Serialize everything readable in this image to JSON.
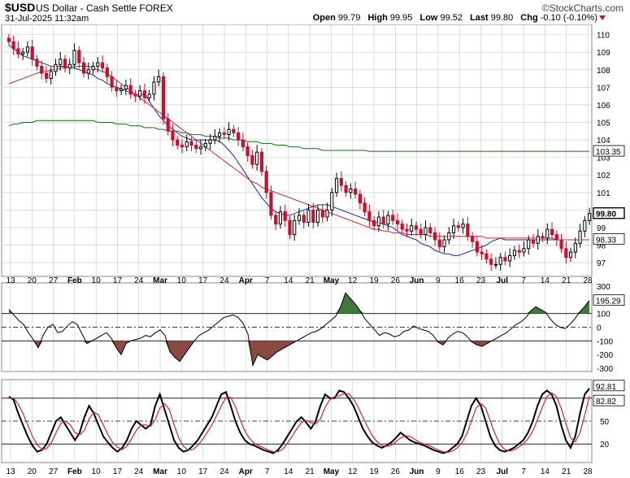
{
  "header": {
    "symbol": "$USD",
    "name": "US Dollar - Cash Settle FOREX",
    "brand": "©StockCharts.com",
    "datetime": "31-Jul-2025 11:32am",
    "open_label": "Open",
    "open": "99.79",
    "high_label": "High",
    "high": "99.95",
    "low_label": "Low",
    "low": "99.52",
    "last_label": "Last",
    "last": "99.80",
    "chg_label": "Chg",
    "chg": "-0.10 (-0.10%)"
  },
  "colors": {
    "up": "#000000",
    "down": "#c8102e",
    "ma_fast": "#1f2a9c",
    "ma_mid": "#d1283f",
    "ma_slow": "#1f6b1f",
    "cci_pos": "#3f7a3a",
    "cci_neg": "#8a4a44",
    "stoch_k": "#000000",
    "stoch_d": "#d1283f",
    "grid": "#c8c8c8"
  },
  "x_axis_labels": [
    "13",
    "20",
    "27",
    "Feb",
    "10",
    "17",
    "24",
    "Mar",
    "10",
    "17",
    "24",
    "Apr",
    "7",
    "14",
    "21",
    "May",
    "12",
    "19",
    "26",
    "Jun",
    "9",
    "16",
    "23",
    "Jul",
    "7",
    "14",
    "21",
    "28"
  ],
  "chart_data": [
    {
      "type": "candlestick",
      "ylim": [
        96.4,
        110.4
      ],
      "yticks": [
        97,
        98,
        99,
        100,
        101,
        102,
        103,
        104,
        105,
        106,
        107,
        108,
        109,
        110
      ],
      "value_tags": [
        {
          "label": "99.80",
          "value": 99.8
        },
        {
          "label": "103.35",
          "value": 103.35
        },
        {
          "label": "98.33",
          "value": 98.33
        }
      ],
      "closes": [
        109.6,
        109.2,
        108.9,
        109.0,
        109.3,
        108.6,
        108.2,
        107.8,
        107.5,
        107.9,
        108.3,
        108.6,
        108.1,
        108.3,
        109.1,
        108.4,
        107.8,
        108.0,
        108.2,
        108.4,
        108.1,
        107.6,
        107.0,
        106.8,
        106.9,
        107.1,
        106.6,
        106.5,
        106.8,
        106.4,
        106.6,
        107.3,
        107.6,
        105.2,
        104.5,
        104.0,
        103.7,
        103.6,
        103.9,
        103.7,
        103.5,
        103.6,
        103.8,
        104.0,
        104.2,
        104.4,
        104.3,
        104.6,
        104.4,
        104.0,
        103.6,
        103.1,
        102.6,
        103.3,
        102.2,
        101.0,
        99.7,
        99.2,
        99.9,
        99.4,
        98.6,
        99.4,
        99.7,
        99.3,
        100.0,
        99.3,
        100.0,
        99.6,
        100.0,
        101.0,
        101.8,
        101.4,
        101.0,
        101.2,
        100.9,
        100.4,
        99.9,
        99.4,
        99.1,
        99.6,
        99.2,
        99.7,
        99.4,
        99.2,
        98.9,
        98.8,
        99.1,
        98.9,
        98.6,
        99.0,
        98.7,
        98.3,
        97.9,
        98.3,
        98.7,
        99.1,
        99.0,
        99.2,
        98.5,
        98.2,
        97.6,
        97.5,
        97.2,
        96.9,
        96.9,
        97.3,
        97.1,
        97.4,
        97.7,
        97.6,
        97.8,
        98.3,
        98.1,
        98.5,
        98.4,
        98.9,
        98.6,
        98.3,
        97.8,
        97.3,
        97.6,
        98.1,
        98.8,
        99.4,
        99.8
      ],
      "series": [
        {
          "name": "MA fast",
          "values": [
            109.4,
            109.2,
            109.0,
            108.8,
            108.7,
            108.6,
            108.5,
            108.4,
            108.3,
            108.2,
            108.2,
            108.2,
            108.2,
            108.1,
            108.1,
            108.0,
            107.9,
            107.8,
            107.7,
            107.5,
            107.4,
            107.2,
            107.1,
            107.0,
            106.9,
            106.8,
            106.7,
            106.6,
            106.6,
            106.6,
            106.2,
            105.8,
            105.4,
            105.1,
            104.8,
            104.6,
            104.4,
            104.2,
            104.1,
            104.0,
            104.0,
            104.0,
            104.0,
            104.0,
            104.0,
            103.9,
            103.7,
            103.4,
            103.1,
            102.7,
            102.3,
            101.9,
            101.5,
            101.1,
            100.7,
            100.4,
            100.1,
            99.9,
            99.8,
            99.7,
            99.7,
            99.8,
            99.9,
            100.0,
            100.1,
            100.2,
            100.3,
            100.3,
            100.3,
            100.2,
            100.1,
            100.0,
            99.9,
            99.8,
            99.7,
            99.6,
            99.5,
            99.4,
            99.3,
            99.3,
            99.2,
            99.1,
            99.0,
            98.8,
            98.6,
            98.5,
            98.4,
            98.3,
            98.1,
            98.0,
            97.9,
            97.7,
            97.6,
            97.5,
            97.5,
            97.4,
            97.4,
            97.5,
            97.6,
            97.7,
            97.8,
            97.9,
            98.0,
            98.2,
            98.3,
            98.4,
            98.3,
            98.3,
            98.3,
            98.3,
            98.3,
            98.3,
            98.3,
            98.3,
            98.3,
            98.3,
            98.3,
            98.3,
            98.3,
            98.3,
            98.3,
            98.3,
            98.3,
            98.3,
            98.3
          ]
        },
        {
          "name": "MA mid",
          "values": [
            107.2,
            107.3,
            107.4,
            107.5,
            107.6,
            107.7,
            107.8,
            107.9,
            107.9,
            108.0,
            108.0,
            108.1,
            108.1,
            108.2,
            108.2,
            108.2,
            108.2,
            108.2,
            108.1,
            108.0,
            107.9,
            107.8,
            107.6,
            107.4,
            107.2,
            107.0,
            106.8,
            106.6,
            106.4,
            106.2,
            106.0,
            105.8,
            105.6,
            105.4,
            105.2,
            105.0,
            104.8,
            104.6,
            104.4,
            104.2,
            104.0,
            103.8,
            103.6,
            103.4,
            103.2,
            103.0,
            102.8,
            102.6,
            102.4,
            102.2,
            102.0,
            101.8,
            101.6,
            101.5,
            101.3,
            101.2,
            101.1,
            101.0,
            100.9,
            100.8,
            100.7,
            100.6,
            100.5,
            100.4,
            100.3,
            100.2,
            100.1,
            100.0,
            99.9,
            99.8,
            99.7,
            99.6,
            99.5,
            99.4,
            99.3,
            99.2,
            99.1,
            99.0,
            98.9,
            98.9,
            98.8,
            98.8,
            98.7,
            98.7,
            98.7,
            98.6,
            98.6,
            98.6,
            98.6,
            98.6,
            98.5,
            98.5,
            98.5,
            98.5,
            98.5,
            98.5,
            98.5,
            98.5,
            98.5,
            98.5,
            98.5,
            98.5,
            98.4,
            98.4,
            98.4,
            98.4,
            98.4,
            98.4,
            98.4,
            98.4,
            98.4,
            98.4,
            98.4,
            98.4,
            98.4,
            98.4,
            98.4,
            98.3,
            98.3,
            98.3,
            98.3,
            98.3,
            98.3,
            98.3,
            98.3
          ]
        },
        {
          "name": "MA slow",
          "values": [
            104.8,
            104.9,
            104.9,
            105.0,
            105.0,
            105.0,
            105.1,
            105.1,
            105.1,
            105.1,
            105.1,
            105.1,
            105.1,
            105.1,
            105.1,
            105.1,
            105.1,
            105.1,
            105.1,
            105.0,
            105.0,
            105.0,
            105.0,
            104.9,
            104.9,
            104.9,
            104.8,
            104.8,
            104.8,
            104.7,
            104.7,
            104.7,
            104.6,
            104.6,
            104.5,
            104.5,
            104.5,
            104.4,
            104.4,
            104.3,
            104.3,
            104.3,
            104.2,
            104.2,
            104.2,
            104.1,
            104.1,
            104.1,
            104.0,
            104.0,
            104.0,
            103.9,
            103.9,
            103.9,
            103.8,
            103.8,
            103.8,
            103.7,
            103.7,
            103.7,
            103.6,
            103.6,
            103.6,
            103.5,
            103.5,
            103.5,
            103.5,
            103.4,
            103.4,
            103.4,
            103.4,
            103.4,
            103.4,
            103.4,
            103.4,
            103.4,
            103.4,
            103.35,
            103.35,
            103.35,
            103.35,
            103.35,
            103.35,
            103.35,
            103.35,
            103.35,
            103.35,
            103.35,
            103.35,
            103.35,
            103.35,
            103.35,
            103.35,
            103.35,
            103.35,
            103.35,
            103.35,
            103.35,
            103.35,
            103.35,
            103.35,
            103.35,
            103.35,
            103.35,
            103.35,
            103.35,
            103.35,
            103.35,
            103.35,
            103.35,
            103.35,
            103.35,
            103.35,
            103.35,
            103.35,
            103.35,
            103.35,
            103.35,
            103.35,
            103.35,
            103.35,
            103.35,
            103.35,
            103.35,
            103.35
          ]
        }
      ]
    },
    {
      "type": "area",
      "ylim": [
        -300,
        300
      ],
      "yticks": [
        300,
        200,
        100,
        0,
        -100,
        -200,
        -300
      ],
      "guides": [
        100,
        -100
      ],
      "value_tag": "195.29",
      "values": [
        130,
        90,
        50,
        20,
        -40,
        -90,
        -150,
        -60,
        0,
        20,
        -40,
        -30,
        10,
        40,
        20,
        -50,
        -120,
        -100,
        -80,
        -60,
        -40,
        -80,
        -150,
        -200,
        -120,
        -100,
        -90,
        -80,
        -60,
        -70,
        -40,
        -20,
        -60,
        -180,
        -220,
        -250,
        -200,
        -150,
        -100,
        -60,
        -40,
        -20,
        10,
        40,
        70,
        80,
        90,
        70,
        30,
        -50,
        -280,
        -200,
        -220,
        -240,
        -210,
        -180,
        -160,
        -140,
        -120,
        -100,
        -80,
        -60,
        -40,
        -30,
        -10,
        20,
        50,
        80,
        150,
        250,
        210,
        170,
        120,
        60,
        20,
        -20,
        -60,
        -40,
        -50,
        -70,
        -60,
        -30,
        -20,
        10,
        -10,
        -20,
        -30,
        -60,
        -110,
        -130,
        -80,
        -50,
        -30,
        -40,
        -70,
        -110,
        -130,
        -140,
        -120,
        -100,
        -80,
        -60,
        -40,
        -10,
        20,
        40,
        70,
        120,
        150,
        130,
        110,
        60,
        20,
        0,
        -10,
        20,
        60,
        110,
        150,
        195
      ]
    },
    {
      "type": "line",
      "ylim": [
        0,
        100
      ],
      "yticks": [
        80,
        50,
        20
      ],
      "guides": [
        80,
        50,
        20
      ],
      "value_tags": [
        "92.81",
        "82.82"
      ],
      "series": [
        {
          "name": "%K",
          "values": [
            82,
            78,
            60,
            45,
            30,
            18,
            10,
            12,
            20,
            35,
            50,
            55,
            45,
            35,
            25,
            35,
            55,
            70,
            60,
            45,
            30,
            22,
            15,
            10,
            15,
            25,
            40,
            50,
            45,
            40,
            45,
            70,
            85,
            65,
            45,
            25,
            15,
            10,
            12,
            18,
            25,
            35,
            45,
            55,
            70,
            85,
            88,
            70,
            50,
            35,
            25,
            20,
            18,
            15,
            12,
            10,
            8,
            12,
            20,
            30,
            40,
            50,
            55,
            48,
            40,
            50,
            70,
            85,
            80,
            80,
            90,
            88,
            80,
            70,
            55,
            40,
            30,
            22,
            18,
            15,
            18,
            22,
            28,
            35,
            30,
            25,
            22,
            20,
            18,
            15,
            12,
            10,
            8,
            10,
            15,
            20,
            30,
            50,
            70,
            80,
            70,
            50,
            30,
            18,
            12,
            10,
            12,
            15,
            20,
            25,
            35,
            50,
            70,
            85,
            90,
            85,
            70,
            45,
            25,
            15,
            30,
            60,
            85,
            92.8
          ]
        },
        {
          "name": "%D",
          "values": [
            80,
            80,
            72,
            60,
            45,
            30,
            19,
            13,
            14,
            22,
            35,
            47,
            50,
            45,
            35,
            32,
            38,
            53,
            62,
            58,
            45,
            32,
            22,
            16,
            13,
            17,
            27,
            38,
            45,
            45,
            43,
            52,
            67,
            73,
            65,
            45,
            28,
            17,
            12,
            13,
            18,
            26,
            35,
            45,
            57,
            70,
            81,
            81,
            69,
            52,
            37,
            27,
            21,
            18,
            15,
            12,
            10,
            10,
            13,
            21,
            30,
            40,
            48,
            51,
            48,
            46,
            53,
            68,
            78,
            82,
            83,
            86,
            86,
            79,
            68,
            55,
            42,
            31,
            23,
            18,
            17,
            18,
            23,
            28,
            31,
            30,
            26,
            22,
            20,
            18,
            15,
            12,
            10,
            9,
            11,
            15,
            22,
            33,
            50,
            67,
            73,
            67,
            50,
            33,
            20,
            13,
            11,
            12,
            16,
            20,
            27,
            37,
            52,
            68,
            82,
            87,
            82,
            67,
            47,
            28,
            23,
            35,
            58,
            82.8
          ]
        }
      ]
    }
  ]
}
